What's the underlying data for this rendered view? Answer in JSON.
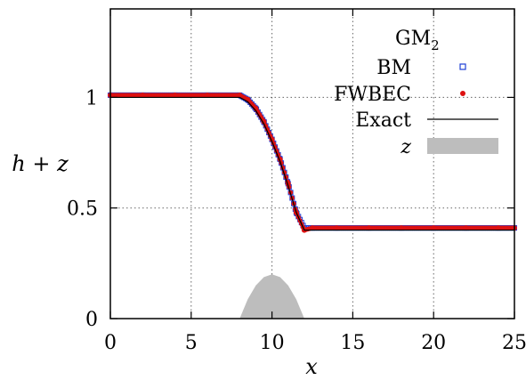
{
  "chart_data": {
    "type": "line",
    "title": "",
    "legend_title": "GM",
    "legend_title_subscript": "2",
    "legend_position": "top-right",
    "xlabel": "x",
    "ylabel": "h + z",
    "xlim": [
      0,
      25
    ],
    "ylim": [
      0,
      1.4
    ],
    "x_ticks": [
      0,
      5,
      10,
      15,
      20,
      25
    ],
    "x_tick_labels": [
      "0",
      "5",
      "10",
      "15",
      "20",
      "25"
    ],
    "y_ticks": [
      0,
      0.5,
      1
    ],
    "y_tick_labels": [
      "0",
      "0.5",
      "1"
    ],
    "grid": true,
    "series": [
      {
        "name": "BM",
        "kind": "points",
        "marker": "open-square",
        "color": "#1f3fd6",
        "x": [
          0,
          2,
          4,
          6,
          8,
          8.5,
          9,
          9.5,
          10,
          10.5,
          11,
          11.5,
          12,
          12.5,
          14,
          16,
          18,
          20,
          22,
          24,
          25
        ],
        "y": [
          1.01,
          1.01,
          1.01,
          1.01,
          1.01,
          0.99,
          0.95,
          0.89,
          0.81,
          0.72,
          0.61,
          0.48,
          0.41,
          0.41,
          0.41,
          0.41,
          0.41,
          0.41,
          0.41,
          0.41,
          0.41
        ]
      },
      {
        "name": "FWBEC",
        "kind": "points",
        "marker": "filled-circle",
        "color": "#dd1111",
        "x": [
          0,
          2,
          4,
          6,
          8,
          8.5,
          9,
          9.5,
          10,
          10.5,
          11,
          11.5,
          12,
          12.5,
          14,
          16,
          18,
          20,
          22,
          24,
          25
        ],
        "y": [
          1.01,
          1.01,
          1.01,
          1.01,
          1.01,
          0.99,
          0.95,
          0.89,
          0.81,
          0.72,
          0.61,
          0.48,
          0.4,
          0.41,
          0.41,
          0.41,
          0.41,
          0.41,
          0.41,
          0.41,
          0.41
        ]
      },
      {
        "name": "Exact",
        "kind": "line",
        "color": "#000000",
        "x": [
          0,
          8,
          8.5,
          9,
          9.5,
          10,
          10.5,
          11,
          11.5,
          12,
          25
        ],
        "y": [
          1.0,
          1.0,
          0.98,
          0.94,
          0.88,
          0.8,
          0.71,
          0.6,
          0.48,
          0.4,
          0.4
        ]
      },
      {
        "name": "z",
        "kind": "area",
        "color": "#bdbdbd",
        "x": [
          8,
          8.5,
          9,
          9.5,
          10,
          10.5,
          11,
          11.5,
          12
        ],
        "y": [
          0,
          0.0875,
          0.15,
          0.1875,
          0.2,
          0.1875,
          0.15,
          0.0875,
          0
        ]
      }
    ]
  }
}
